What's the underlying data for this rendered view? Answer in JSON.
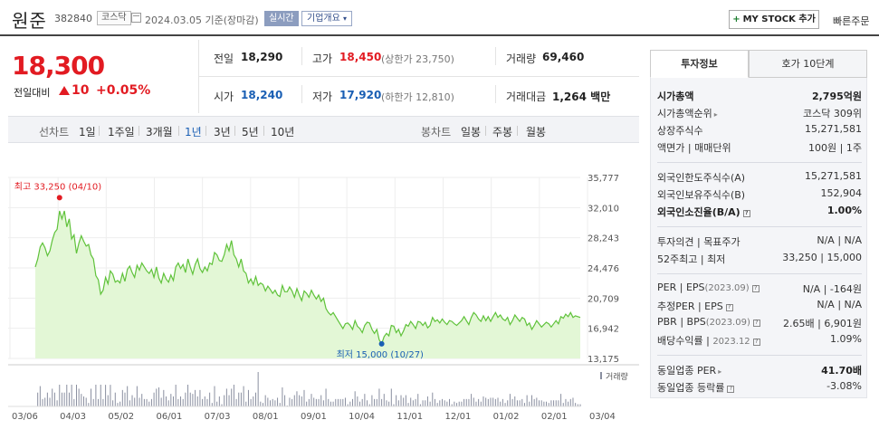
{
  "header": {
    "name": "원준",
    "code": "382840",
    "market": "코스닥",
    "date": "2024.03.05",
    "basis": "기준(장마감)",
    "realtime": "실시간",
    "corp_overview": "기업개요",
    "my_stock": "MY STOCK 추가",
    "quick_order": "빠른주문"
  },
  "price": {
    "current": "18,300",
    "diff_label": "전일대비",
    "diff": "10",
    "pct": "+0.05%"
  },
  "summary": {
    "prev_label": "전일",
    "prev": "18,290",
    "high_label": "고가",
    "high": "18,450",
    "upper_limit": "(상한가 23,750)",
    "volume_label": "거래량",
    "volume": "69,460",
    "open_label": "시가",
    "open": "18,240",
    "low_label": "저가",
    "low": "17,920",
    "lower_limit": "(하한가 12,810)",
    "amount_label": "거래대금",
    "amount": "1,264",
    "amount_unit": "백만"
  },
  "period_bar": {
    "line_label": "선차트",
    "periods": [
      "1일",
      "1주일",
      "3개월",
      "1년",
      "3년",
      "5년",
      "10년"
    ],
    "active": "1년",
    "candle_label": "봉차트",
    "candles": [
      "일봉",
      "주봉",
      "월봉"
    ]
  },
  "chart_data": {
    "type": "area",
    "y_ticks": [
      "35,777",
      "32,010",
      "28,243",
      "24,476",
      "20,709",
      "16,942",
      "13,175"
    ],
    "ylim": [
      13175,
      35777
    ],
    "x_ticks": [
      "03/06",
      "04/03",
      "05/02",
      "06/01",
      "07/03",
      "08/01",
      "09/01",
      "10/04",
      "11/01",
      "12/01",
      "01/02",
      "02/01",
      "03/04"
    ],
    "high_label": "최고 33,250 (04/10)",
    "low_label": "최저 15,000 (10/27)",
    "volume_legend": "거래량",
    "line_color": "#5fc23a",
    "fill_color": "#e3f7d6",
    "series": [
      {
        "values": [
          24600,
          25600,
          27100,
          27600,
          27000,
          26000,
          26600,
          27900,
          28900,
          29300,
          31600,
          30600,
          31600,
          29600,
          30600,
          28100,
          28600,
          26300,
          27600,
          28500,
          27800,
          27200,
          27400,
          26100,
          25600,
          23500,
          23000,
          21200,
          21700,
          23300,
          22500,
          24100,
          23700,
          22700,
          22900,
          22600,
          23800,
          22800,
          24300,
          24700,
          23900,
          23300,
          24800,
          24200,
          25100,
          24600,
          24100,
          23800,
          24300,
          23300,
          24600,
          23200,
          22600,
          23800,
          23100,
          22700,
          23600,
          22900,
          24600,
          25100,
          24400,
          24900,
          23900,
          25600,
          24600,
          23700,
          24900,
          25600,
          24400,
          23900,
          24600,
          24100,
          25100,
          24900,
          26400,
          26100,
          25400,
          25300,
          26100,
          27400,
          26600,
          27900,
          26100,
          25600,
          24600,
          25600,
          24100,
          23800,
          22600,
          23100,
          22400,
          23400,
          22300,
          22600,
          22400,
          21600,
          22200,
          21800,
          21300,
          21700,
          21100,
          20900,
          22300,
          21500,
          21500,
          22100,
          21600,
          20800,
          21900,
          21100,
          20400,
          21600,
          21300,
          20800,
          21700,
          21100,
          20600,
          21100,
          20300,
          20700,
          19400,
          18900,
          18600,
          18900,
          18400,
          17900,
          17400,
          16900,
          17500,
          17600,
          17300,
          16800,
          17900,
          17200,
          16900,
          16400,
          17300,
          17700,
          17600,
          16800,
          16300,
          16800,
          15500,
          15000,
          15900,
          16300,
          16000,
          17300,
          17200,
          16400,
          16800,
          16000,
          16600,
          17400,
          17200,
          17800,
          17400,
          16900,
          17800,
          17700,
          17300,
          17700,
          17000,
          17300,
          18300,
          17800,
          18000,
          17600,
          18100,
          17700,
          17400,
          17900,
          17800,
          17500,
          17300,
          17600,
          17900,
          18400,
          17900,
          17400,
          18300,
          18900,
          18600,
          18100,
          17800,
          18500,
          17900,
          18400,
          17800,
          18400,
          18900,
          18300,
          18600,
          18100,
          17900,
          18300,
          17400,
          17900,
          18600,
          18200,
          17800,
          18300,
          18100,
          17300,
          17600,
          16800,
          17300,
          17900,
          17500,
          17100,
          17400,
          17700,
          17500,
          17100,
          17500,
          17900,
          17500,
          18400,
          18200,
          18700,
          18400,
          18900,
          18300,
          18500,
          18400,
          18300
        ]
      }
    ]
  },
  "invest_info": {
    "tabs": [
      "투자정보",
      "호가 10단계"
    ],
    "market_cap_label": "시가총액",
    "market_cap": "2,795억원",
    "rank_label": "시가총액순위",
    "rank": "코스닥 309위",
    "shares_label": "상장주식수",
    "shares": "15,271,581",
    "par_label": "액면가",
    "lot_label": "매매단위",
    "par": "100원",
    "lot": "1주",
    "foreign_limit_label": "외국인한도주식수(A)",
    "foreign_limit": "15,271,581",
    "foreign_held_label": "외국인보유주식수(B)",
    "foreign_held": "152,904",
    "foreign_ratio_label": "외국인소진율(B/A)",
    "foreign_ratio": "1.00%",
    "opinion_label": "투자의견",
    "target_label": "목표주가",
    "opinion": "N/A",
    "target": "N/A",
    "wk52_high_label": "52주최고",
    "wk52_low_label": "최저",
    "wk52_high": "33,250",
    "wk52_low": "15,000",
    "per_label": "PER",
    "eps_label": "EPS",
    "per_year": "(2023.09)",
    "per": "N/A",
    "eps": "-164원",
    "est_per_label": "추정PER",
    "est_eps_label": "EPS",
    "est_per": "N/A",
    "est_eps": "N/A",
    "pbr_label": "PBR",
    "bps_label": "BPS",
    "pbr_year": "(2023.09)",
    "pbr": "2.65배",
    "bps": "6,901원",
    "div_label": "배당수익률",
    "div_year": "2023.12",
    "div": "1.09%",
    "ind_per_label": "동일업종 PER",
    "ind_per": "41.70배",
    "ind_rate_label": "동일업종 등락률",
    "ind_rate": "-3.08%"
  }
}
